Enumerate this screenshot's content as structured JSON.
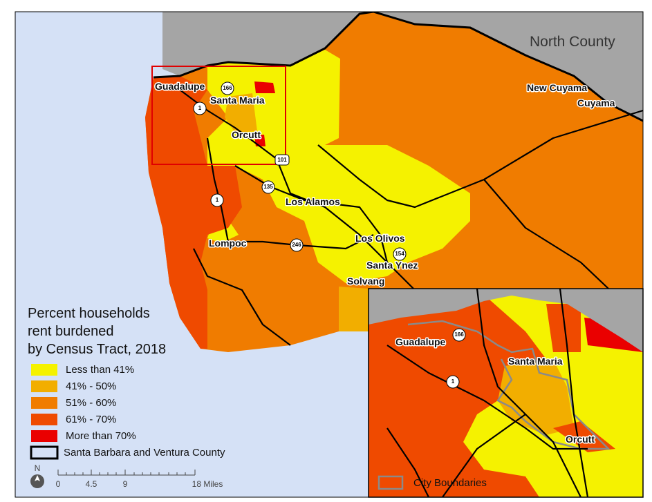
{
  "map": {
    "region_label": "North County",
    "places": [
      "New Cuyama",
      "Cuyama",
      "Guadalupe",
      "Santa Maria",
      "Orcutt",
      "Los Alamos",
      "Lompoc",
      "Los Olivos",
      "Santa Ynez",
      "Solvang"
    ],
    "highways": [
      "166",
      "1",
      "101",
      "135",
      "1",
      "246",
      "154"
    ]
  },
  "inset": {
    "places": [
      "Guadalupe",
      "Santa Maria",
      "Orcutt"
    ],
    "highways": [
      "166",
      "1"
    ],
    "boundary_legend": "City Boundaries"
  },
  "legend": {
    "title_lines": [
      "Percent households",
      "rent burdened",
      "by Census Tract, 2018"
    ],
    "items": [
      {
        "label": "Less than 41%",
        "color": "#f5f200"
      },
      {
        "label": "41% - 50%",
        "color": "#f2ae00"
      },
      {
        "label": "51% - 60%",
        "color": "#f07c00"
      },
      {
        "label": "61% - 70%",
        "color": "#ef4a00"
      },
      {
        "label": "More than 70%",
        "color": "#ea0000"
      }
    ],
    "outline": "Santa Barbara and Ventura County"
  },
  "scale_bar": {
    "north": "N",
    "labels": [
      "0",
      "4.5",
      "9",
      "18 Miles"
    ]
  }
}
